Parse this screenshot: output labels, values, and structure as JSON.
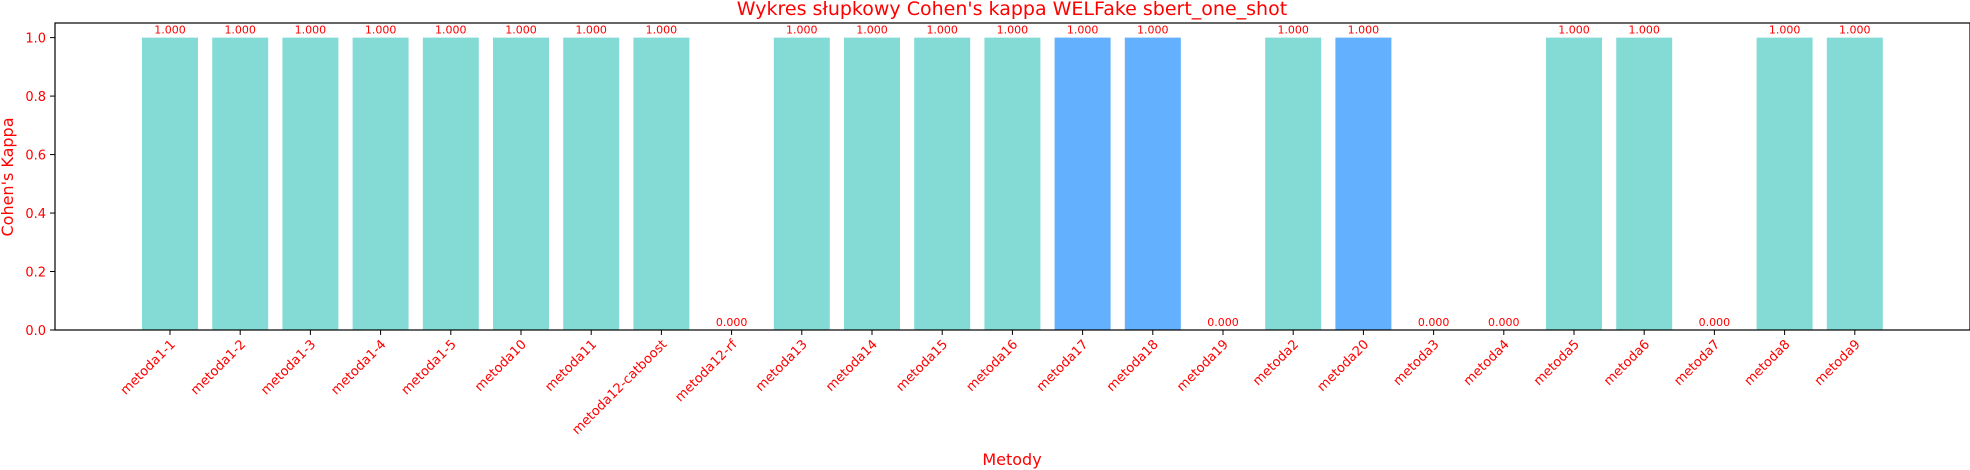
{
  "colors": {
    "text": "#ff0000",
    "bar_default": "#84dbd6",
    "bar_highlight": "#62b0fe",
    "axis": "#000000",
    "background": "#ffffff"
  },
  "chart_data": {
    "type": "bar",
    "title": "Wykres słupkowy Cohen's kappa WELFake sbert_one_shot",
    "xlabel": "Metody",
    "ylabel": "Cohen's Kappa",
    "ylim": [
      0,
      1.05
    ],
    "yticks": [
      "0.0",
      "0.2",
      "0.4",
      "0.6",
      "0.8",
      "1.0"
    ],
    "grid": false,
    "categories": [
      "metoda1-1",
      "metoda1-2",
      "metoda1-3",
      "metoda1-4",
      "metoda1-5",
      "metoda10",
      "metoda11",
      "metoda12-catboost",
      "metoda12-rf",
      "metoda13",
      "metoda14",
      "metoda15",
      "metoda16",
      "metoda17",
      "metoda18",
      "metoda19",
      "metoda2",
      "metoda20",
      "metoda3",
      "metoda4",
      "metoda5",
      "metoda6",
      "metoda7",
      "metoda8",
      "metoda9"
    ],
    "values": [
      1,
      1,
      1,
      1,
      1,
      1,
      1,
      1,
      0,
      1,
      1,
      1,
      1,
      1,
      1,
      0,
      1,
      1,
      0,
      0,
      1,
      1,
      0,
      1,
      1
    ],
    "value_labels": [
      "1.000",
      "1.000",
      "1.000",
      "1.000",
      "1.000",
      "1.000",
      "1.000",
      "1.000",
      "0.000",
      "1.000",
      "1.000",
      "1.000",
      "1.000",
      "1.000",
      "1.000",
      "0.000",
      "1.000",
      "1.000",
      "0.000",
      "0.000",
      "1.000",
      "1.000",
      "0.000",
      "1.000",
      "1.000"
    ],
    "highlighted": [
      "metoda17",
      "metoda18",
      "metoda20"
    ]
  }
}
